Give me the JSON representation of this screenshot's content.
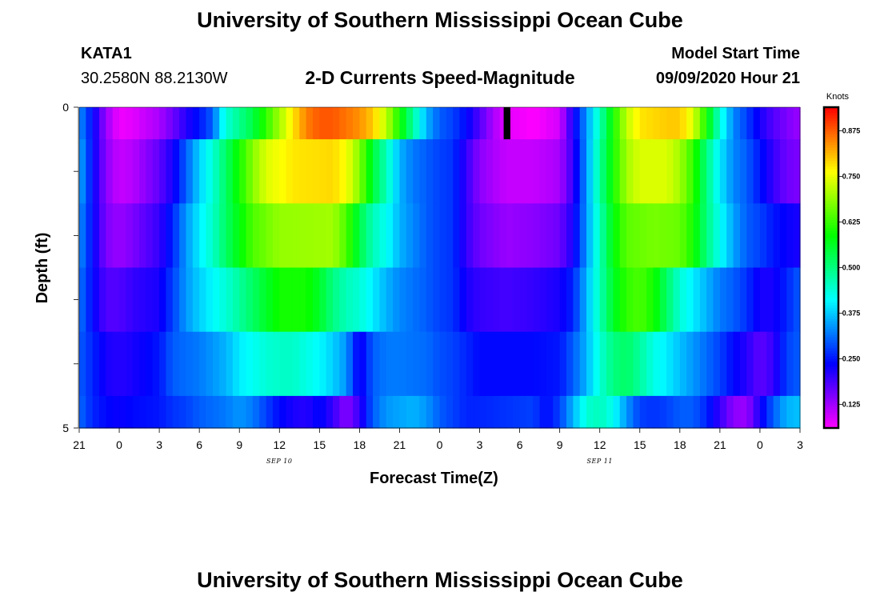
{
  "header": {
    "title": "University of Southern Mississippi Ocean Cube",
    "station": "KATA1",
    "coords": "30.2580N 88.2130W",
    "subtitle": "2-D Currents Speed-Magnitude",
    "model_label": "Model Start Time",
    "model_time": "09/09/2020 Hour 21"
  },
  "footer": {
    "title": "University of Southern Mississippi Ocean Cube"
  },
  "chart_data": {
    "type": "heatmap",
    "xlabel": "Forecast Time(Z)",
    "ylabel": "Depth (ft)",
    "x_tick_labels": [
      "21",
      "0",
      "3",
      "6",
      "9",
      "12",
      "15",
      "18",
      "21",
      "0",
      "3",
      "6",
      "9",
      "12",
      "15",
      "18",
      "21",
      "0",
      "3"
    ],
    "date_labels": [
      {
        "text": "SEP 10",
        "hour": 15
      },
      {
        "text": "SEP 11",
        "hour": 39
      }
    ],
    "x_range_hours": [
      0,
      54
    ],
    "y_ticks": [
      "0",
      "5"
    ],
    "ylim": [
      0,
      5
    ],
    "colorbar": {
      "title": "Knots",
      "ticks": [
        "0.125",
        "0.250",
        "0.375",
        "0.500",
        "0.625",
        "0.750",
        "0.875"
      ],
      "range": [
        0.06,
        0.94
      ]
    },
    "depth_rows": 6,
    "row_bounds": [
      0,
      0.5,
      1.5,
      2.5,
      3.5,
      4.5,
      5
    ],
    "missing": [
      {
        "x_hours": [
          31.8,
          32.3
        ],
        "row": 0
      }
    ],
    "rows": [
      [
        [
          0,
          0.34
        ],
        [
          1,
          0.24
        ],
        [
          2,
          0.13
        ],
        [
          3,
          0.07
        ],
        [
          4,
          0.08
        ],
        [
          6,
          0.12
        ],
        [
          7,
          0.16
        ],
        [
          8,
          0.21
        ],
        [
          9,
          0.25
        ],
        [
          10,
          0.3
        ],
        [
          10.5,
          0.38
        ],
        [
          11,
          0.44
        ],
        [
          12,
          0.49
        ],
        [
          13,
          0.54
        ],
        [
          14,
          0.62
        ],
        [
          15,
          0.7
        ],
        [
          16,
          0.78
        ],
        [
          17,
          0.85
        ],
        [
          18,
          0.88
        ],
        [
          19,
          0.88
        ],
        [
          20,
          0.86
        ],
        [
          21,
          0.84
        ],
        [
          22,
          0.8
        ],
        [
          23,
          0.72
        ],
        [
          24,
          0.6
        ],
        [
          25,
          0.48
        ],
        [
          26,
          0.36
        ],
        [
          27,
          0.3
        ],
        [
          28,
          0.28
        ],
        [
          29,
          0.24
        ],
        [
          30,
          0.18
        ],
        [
          31,
          0.12
        ],
        [
          32,
          0.08
        ],
        [
          34,
          0.06
        ],
        [
          36,
          0.09
        ],
        [
          37,
          0.22
        ],
        [
          38,
          0.34
        ],
        [
          39,
          0.46
        ],
        [
          40,
          0.6
        ],
        [
          41,
          0.72
        ],
        [
          42,
          0.78
        ],
        [
          44,
          0.8
        ],
        [
          45,
          0.8
        ],
        [
          46,
          0.74
        ],
        [
          47,
          0.6
        ],
        [
          48,
          0.44
        ],
        [
          49,
          0.33
        ],
        [
          50,
          0.28
        ],
        [
          51,
          0.22
        ],
        [
          52,
          0.18
        ],
        [
          53,
          0.15
        ],
        [
          54,
          0.13
        ]
      ],
      [
        [
          0,
          0.36
        ],
        [
          1,
          0.24
        ],
        [
          2,
          0.14
        ],
        [
          3,
          0.1
        ],
        [
          4,
          0.11
        ],
        [
          6,
          0.17
        ],
        [
          7,
          0.22
        ],
        [
          8,
          0.3
        ],
        [
          9,
          0.38
        ],
        [
          10,
          0.44
        ],
        [
          11,
          0.52
        ],
        [
          12,
          0.6
        ],
        [
          13,
          0.68
        ],
        [
          14,
          0.74
        ],
        [
          16,
          0.78
        ],
        [
          19,
          0.79
        ],
        [
          20,
          0.76
        ],
        [
          21,
          0.68
        ],
        [
          22,
          0.55
        ],
        [
          23,
          0.46
        ],
        [
          24,
          0.36
        ],
        [
          25,
          0.32
        ],
        [
          26,
          0.3
        ],
        [
          27,
          0.28
        ],
        [
          28,
          0.27
        ],
        [
          29,
          0.2
        ],
        [
          30,
          0.14
        ],
        [
          32,
          0.1
        ],
        [
          34,
          0.1
        ],
        [
          36,
          0.12
        ],
        [
          37,
          0.2
        ],
        [
          38,
          0.34
        ],
        [
          39,
          0.48
        ],
        [
          40,
          0.6
        ],
        [
          41,
          0.7
        ],
        [
          42,
          0.74
        ],
        [
          44,
          0.74
        ],
        [
          45,
          0.7
        ],
        [
          46,
          0.62
        ],
        [
          47,
          0.5
        ],
        [
          48,
          0.4
        ],
        [
          49,
          0.33
        ],
        [
          50,
          0.3
        ],
        [
          51,
          0.25
        ],
        [
          52,
          0.2
        ],
        [
          53,
          0.16
        ],
        [
          54,
          0.15
        ]
      ],
      [
        [
          0,
          0.34
        ],
        [
          1,
          0.24
        ],
        [
          2,
          0.15
        ],
        [
          3,
          0.13
        ],
        [
          4,
          0.15
        ],
        [
          6,
          0.2
        ],
        [
          7,
          0.26
        ],
        [
          8,
          0.34
        ],
        [
          9,
          0.4
        ],
        [
          10,
          0.45
        ],
        [
          11,
          0.52
        ],
        [
          12,
          0.58
        ],
        [
          13,
          0.64
        ],
        [
          15,
          0.69
        ],
        [
          19,
          0.7
        ],
        [
          20,
          0.64
        ],
        [
          21,
          0.54
        ],
        [
          22,
          0.46
        ],
        [
          23,
          0.42
        ],
        [
          24,
          0.36
        ],
        [
          25,
          0.33
        ],
        [
          26,
          0.3
        ],
        [
          27,
          0.28
        ],
        [
          28,
          0.27
        ],
        [
          29,
          0.2
        ],
        [
          30,
          0.16
        ],
        [
          32,
          0.13
        ],
        [
          34,
          0.14
        ],
        [
          36,
          0.16
        ],
        [
          37,
          0.22
        ],
        [
          38,
          0.34
        ],
        [
          39,
          0.46
        ],
        [
          40,
          0.58
        ],
        [
          41,
          0.65
        ],
        [
          43,
          0.67
        ],
        [
          45,
          0.66
        ],
        [
          46,
          0.6
        ],
        [
          47,
          0.5
        ],
        [
          48,
          0.42
        ],
        [
          49,
          0.35
        ],
        [
          50,
          0.3
        ],
        [
          51,
          0.28
        ],
        [
          52,
          0.25
        ],
        [
          53,
          0.23
        ],
        [
          54,
          0.22
        ]
      ],
      [
        [
          0,
          0.32
        ],
        [
          1,
          0.24
        ],
        [
          2,
          0.18
        ],
        [
          3,
          0.18
        ],
        [
          4,
          0.2
        ],
        [
          6,
          0.22
        ],
        [
          7,
          0.28
        ],
        [
          8,
          0.34
        ],
        [
          9,
          0.38
        ],
        [
          10,
          0.41
        ],
        [
          11,
          0.44
        ],
        [
          12,
          0.48
        ],
        [
          13,
          0.52
        ],
        [
          14,
          0.56
        ],
        [
          15,
          0.6
        ],
        [
          17,
          0.6
        ],
        [
          18,
          0.56
        ],
        [
          19,
          0.5
        ],
        [
          20,
          0.46
        ],
        [
          21,
          0.44
        ],
        [
          22,
          0.4
        ],
        [
          23,
          0.36
        ],
        [
          24,
          0.33
        ],
        [
          26,
          0.3
        ],
        [
          27,
          0.28
        ],
        [
          28,
          0.27
        ],
        [
          29,
          0.22
        ],
        [
          30,
          0.2
        ],
        [
          32,
          0.19
        ],
        [
          34,
          0.2
        ],
        [
          36,
          0.22
        ],
        [
          37,
          0.26
        ],
        [
          38,
          0.36
        ],
        [
          39,
          0.46
        ],
        [
          40,
          0.56
        ],
        [
          41,
          0.62
        ],
        [
          42,
          0.64
        ],
        [
          43,
          0.6
        ],
        [
          44,
          0.52
        ],
        [
          45,
          0.44
        ],
        [
          46,
          0.4
        ],
        [
          47,
          0.36
        ],
        [
          48,
          0.32
        ],
        [
          49,
          0.3
        ],
        [
          50,
          0.27
        ],
        [
          51,
          0.22
        ],
        [
          52,
          0.22
        ],
        [
          53,
          0.26
        ],
        [
          54,
          0.3
        ]
      ],
      [
        [
          0,
          0.3
        ],
        [
          1,
          0.26
        ],
        [
          2,
          0.22
        ],
        [
          3,
          0.21
        ],
        [
          4,
          0.22
        ],
        [
          6,
          0.25
        ],
        [
          7,
          0.3
        ],
        [
          8,
          0.31
        ],
        [
          9,
          0.32
        ],
        [
          10,
          0.34
        ],
        [
          11,
          0.36
        ],
        [
          12,
          0.4
        ],
        [
          13,
          0.42
        ],
        [
          14,
          0.44
        ],
        [
          15,
          0.45
        ],
        [
          16,
          0.45
        ],
        [
          17,
          0.43
        ],
        [
          18,
          0.41
        ],
        [
          19,
          0.38
        ],
        [
          20,
          0.34
        ],
        [
          21,
          0.22
        ],
        [
          22,
          0.3
        ],
        [
          23,
          0.32
        ],
        [
          24,
          0.32
        ],
        [
          26,
          0.31
        ],
        [
          27,
          0.29
        ],
        [
          28,
          0.28
        ],
        [
          29,
          0.26
        ],
        [
          30,
          0.24
        ],
        [
          32,
          0.24
        ],
        [
          34,
          0.24
        ],
        [
          36,
          0.25
        ],
        [
          37,
          0.3
        ],
        [
          38,
          0.36
        ],
        [
          39,
          0.44
        ],
        [
          40,
          0.5
        ],
        [
          41,
          0.52
        ],
        [
          42,
          0.48
        ],
        [
          43,
          0.43
        ],
        [
          44,
          0.4
        ],
        [
          45,
          0.37
        ],
        [
          46,
          0.34
        ],
        [
          47,
          0.31
        ],
        [
          48,
          0.28
        ],
        [
          49,
          0.24
        ],
        [
          50,
          0.21
        ],
        [
          51,
          0.17
        ],
        [
          52,
          0.2
        ],
        [
          53,
          0.28
        ],
        [
          54,
          0.3
        ]
      ],
      [
        [
          0,
          0.31
        ],
        [
          1,
          0.26
        ],
        [
          2,
          0.24
        ],
        [
          3,
          0.23
        ],
        [
          4,
          0.24
        ],
        [
          6,
          0.25
        ],
        [
          7,
          0.27
        ],
        [
          8,
          0.28
        ],
        [
          9,
          0.3
        ],
        [
          10,
          0.31
        ],
        [
          11,
          0.32
        ],
        [
          12,
          0.34
        ],
        [
          13,
          0.32
        ],
        [
          14,
          0.28
        ],
        [
          15,
          0.24
        ],
        [
          16,
          0.22
        ],
        [
          17,
          0.21
        ],
        [
          18,
          0.24
        ],
        [
          19,
          0.2
        ],
        [
          20,
          0.14
        ],
        [
          21,
          0.2
        ],
        [
          22,
          0.3
        ],
        [
          23,
          0.34
        ],
        [
          24,
          0.35
        ],
        [
          25,
          0.36
        ],
        [
          26,
          0.34
        ],
        [
          27,
          0.3
        ],
        [
          28,
          0.28
        ],
        [
          29,
          0.26
        ],
        [
          30,
          0.26
        ],
        [
          32,
          0.27
        ],
        [
          34,
          0.28
        ],
        [
          35,
          0.24
        ],
        [
          36,
          0.28
        ],
        [
          37,
          0.36
        ],
        [
          38,
          0.44
        ],
        [
          39,
          0.46
        ],
        [
          40,
          0.42
        ],
        [
          41,
          0.34
        ],
        [
          42,
          0.28
        ],
        [
          43,
          0.27
        ],
        [
          44,
          0.28
        ],
        [
          45,
          0.3
        ],
        [
          46,
          0.3
        ],
        [
          47,
          0.26
        ],
        [
          48,
          0.2
        ],
        [
          49,
          0.14
        ],
        [
          50,
          0.13
        ],
        [
          51,
          0.22
        ],
        [
          52,
          0.3
        ],
        [
          53,
          0.36
        ],
        [
          54,
          0.37
        ]
      ]
    ]
  }
}
